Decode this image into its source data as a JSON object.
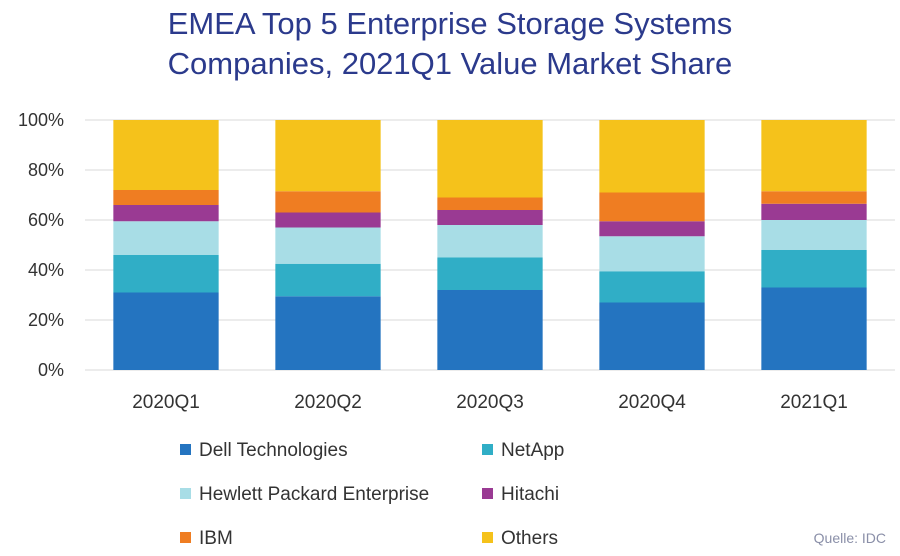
{
  "title_lines": [
    "EMEA Top 5 Enterprise Storage Systems",
    "Companies, 2021Q1 Value Market Share"
  ],
  "source": "Quelle: IDC",
  "chart_data": {
    "type": "bar",
    "stacked": true,
    "title": "EMEA Top 5 Enterprise Storage Systems Companies, 2021Q1 Value Market Share",
    "categories": [
      "2020Q1",
      "2020Q2",
      "2020Q3",
      "2020Q4",
      "2021Q1"
    ],
    "y_ticks": [
      "0%",
      "20%",
      "40%",
      "60%",
      "80%",
      "100%"
    ],
    "ylim": [
      0,
      100
    ],
    "grid": true,
    "legend_position": "bottom",
    "series": [
      {
        "name": "Dell Technologies",
        "color": "#2474c0",
        "values": [
          31,
          29.5,
          32,
          27,
          33
        ]
      },
      {
        "name": "NetApp",
        "color": "#30aec6",
        "values": [
          15,
          13,
          13,
          12.5,
          15
        ]
      },
      {
        "name": "Hewlett Packard Enterprise",
        "color": "#a8dde6",
        "values": [
          13.5,
          14.5,
          13,
          14,
          12
        ]
      },
      {
        "name": "Hitachi",
        "color": "#9a3a93",
        "values": [
          6.5,
          6,
          6,
          6,
          6.5
        ]
      },
      {
        "name": "IBM",
        "color": "#ef7d22",
        "values": [
          6,
          8.5,
          5,
          11.5,
          5
        ]
      },
      {
        "name": "Others",
        "color": "#f5c21b",
        "values": [
          28,
          28.5,
          31,
          29,
          28.5
        ]
      }
    ]
  }
}
